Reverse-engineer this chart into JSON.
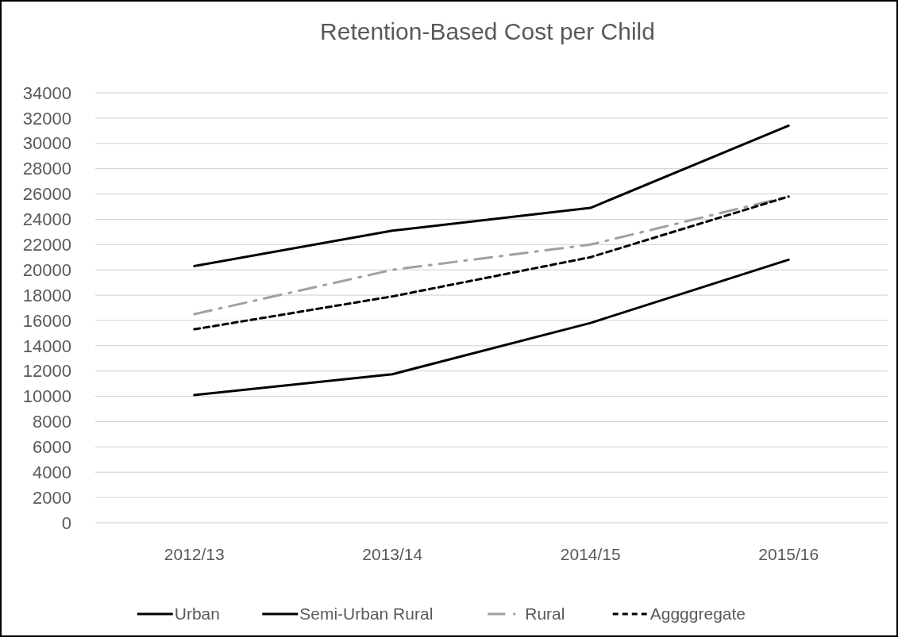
{
  "chart_data": {
    "type": "line",
    "title": "Retention-Based Cost per Child",
    "categories": [
      "2012/13",
      "2013/14",
      "2014/15",
      "2015/16"
    ],
    "series": [
      {
        "name": "Urban",
        "color": "#000000",
        "line_style": "solid",
        "values": [
          20300,
          23100,
          24900,
          31400
        ]
      },
      {
        "name": "Semi-Urban Rural",
        "color": "#000000",
        "line_style": "solid",
        "values": [
          10100,
          11750,
          15800,
          20800
        ]
      },
      {
        "name": "Rural",
        "color": "#a0a0a0",
        "line_style": "dashdot",
        "values": [
          16500,
          20000,
          22000,
          25800
        ]
      },
      {
        "name": "Aggggregate",
        "color": "#000000",
        "line_style": "dashed",
        "values": [
          15300,
          17900,
          21000,
          25800
        ]
      }
    ],
    "ylim": [
      0,
      34000
    ],
    "yticks": [
      0,
      2000,
      4000,
      6000,
      8000,
      10000,
      12000,
      14000,
      16000,
      18000,
      20000,
      22000,
      24000,
      26000,
      28000,
      30000,
      32000,
      34000
    ],
    "grid": "y",
    "legend": "bottom",
    "marker": "none"
  }
}
